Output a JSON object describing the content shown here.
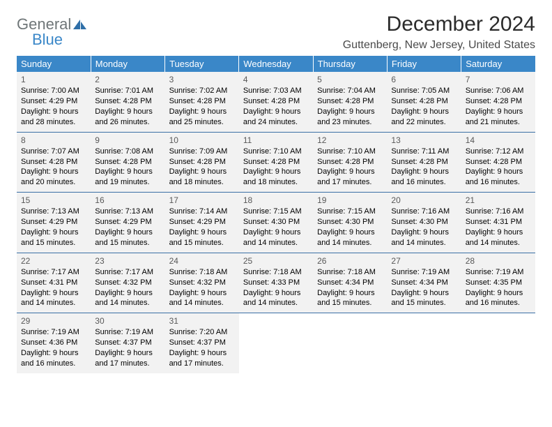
{
  "logo": {
    "line1": "General",
    "line2": "Blue"
  },
  "title": "December 2024",
  "location": "Guttenberg, New Jersey, United States",
  "colors": {
    "header_bg": "#3a87c8",
    "header_text": "#ffffff",
    "cell_bg": "#f2f2f2",
    "border": "#3a6fa5",
    "logo_gray": "#6f7678",
    "logo_blue": "#3a87c8"
  },
  "weekdays": [
    "Sunday",
    "Monday",
    "Tuesday",
    "Wednesday",
    "Thursday",
    "Friday",
    "Saturday"
  ],
  "days": [
    {
      "n": "1",
      "sr": "7:00 AM",
      "ss": "4:29 PM",
      "dl": "9 hours and 28 minutes."
    },
    {
      "n": "2",
      "sr": "7:01 AM",
      "ss": "4:28 PM",
      "dl": "9 hours and 26 minutes."
    },
    {
      "n": "3",
      "sr": "7:02 AM",
      "ss": "4:28 PM",
      "dl": "9 hours and 25 minutes."
    },
    {
      "n": "4",
      "sr": "7:03 AM",
      "ss": "4:28 PM",
      "dl": "9 hours and 24 minutes."
    },
    {
      "n": "5",
      "sr": "7:04 AM",
      "ss": "4:28 PM",
      "dl": "9 hours and 23 minutes."
    },
    {
      "n": "6",
      "sr": "7:05 AM",
      "ss": "4:28 PM",
      "dl": "9 hours and 22 minutes."
    },
    {
      "n": "7",
      "sr": "7:06 AM",
      "ss": "4:28 PM",
      "dl": "9 hours and 21 minutes."
    },
    {
      "n": "8",
      "sr": "7:07 AM",
      "ss": "4:28 PM",
      "dl": "9 hours and 20 minutes."
    },
    {
      "n": "9",
      "sr": "7:08 AM",
      "ss": "4:28 PM",
      "dl": "9 hours and 19 minutes."
    },
    {
      "n": "10",
      "sr": "7:09 AM",
      "ss": "4:28 PM",
      "dl": "9 hours and 18 minutes."
    },
    {
      "n": "11",
      "sr": "7:10 AM",
      "ss": "4:28 PM",
      "dl": "9 hours and 18 minutes."
    },
    {
      "n": "12",
      "sr": "7:10 AM",
      "ss": "4:28 PM",
      "dl": "9 hours and 17 minutes."
    },
    {
      "n": "13",
      "sr": "7:11 AM",
      "ss": "4:28 PM",
      "dl": "9 hours and 16 minutes."
    },
    {
      "n": "14",
      "sr": "7:12 AM",
      "ss": "4:28 PM",
      "dl": "9 hours and 16 minutes."
    },
    {
      "n": "15",
      "sr": "7:13 AM",
      "ss": "4:29 PM",
      "dl": "9 hours and 15 minutes."
    },
    {
      "n": "16",
      "sr": "7:13 AM",
      "ss": "4:29 PM",
      "dl": "9 hours and 15 minutes."
    },
    {
      "n": "17",
      "sr": "7:14 AM",
      "ss": "4:29 PM",
      "dl": "9 hours and 15 minutes."
    },
    {
      "n": "18",
      "sr": "7:15 AM",
      "ss": "4:30 PM",
      "dl": "9 hours and 14 minutes."
    },
    {
      "n": "19",
      "sr": "7:15 AM",
      "ss": "4:30 PM",
      "dl": "9 hours and 14 minutes."
    },
    {
      "n": "20",
      "sr": "7:16 AM",
      "ss": "4:30 PM",
      "dl": "9 hours and 14 minutes."
    },
    {
      "n": "21",
      "sr": "7:16 AM",
      "ss": "4:31 PM",
      "dl": "9 hours and 14 minutes."
    },
    {
      "n": "22",
      "sr": "7:17 AM",
      "ss": "4:31 PM",
      "dl": "9 hours and 14 minutes."
    },
    {
      "n": "23",
      "sr": "7:17 AM",
      "ss": "4:32 PM",
      "dl": "9 hours and 14 minutes."
    },
    {
      "n": "24",
      "sr": "7:18 AM",
      "ss": "4:32 PM",
      "dl": "9 hours and 14 minutes."
    },
    {
      "n": "25",
      "sr": "7:18 AM",
      "ss": "4:33 PM",
      "dl": "9 hours and 14 minutes."
    },
    {
      "n": "26",
      "sr": "7:18 AM",
      "ss": "4:34 PM",
      "dl": "9 hours and 15 minutes."
    },
    {
      "n": "27",
      "sr": "7:19 AM",
      "ss": "4:34 PM",
      "dl": "9 hours and 15 minutes."
    },
    {
      "n": "28",
      "sr": "7:19 AM",
      "ss": "4:35 PM",
      "dl": "9 hours and 16 minutes."
    },
    {
      "n": "29",
      "sr": "7:19 AM",
      "ss": "4:36 PM",
      "dl": "9 hours and 16 minutes."
    },
    {
      "n": "30",
      "sr": "7:19 AM",
      "ss": "4:37 PM",
      "dl": "9 hours and 17 minutes."
    },
    {
      "n": "31",
      "sr": "7:20 AM",
      "ss": "4:37 PM",
      "dl": "9 hours and 17 minutes."
    }
  ],
  "labels": {
    "sunrise": "Sunrise: ",
    "sunset": "Sunset: ",
    "daylight": "Daylight: "
  }
}
